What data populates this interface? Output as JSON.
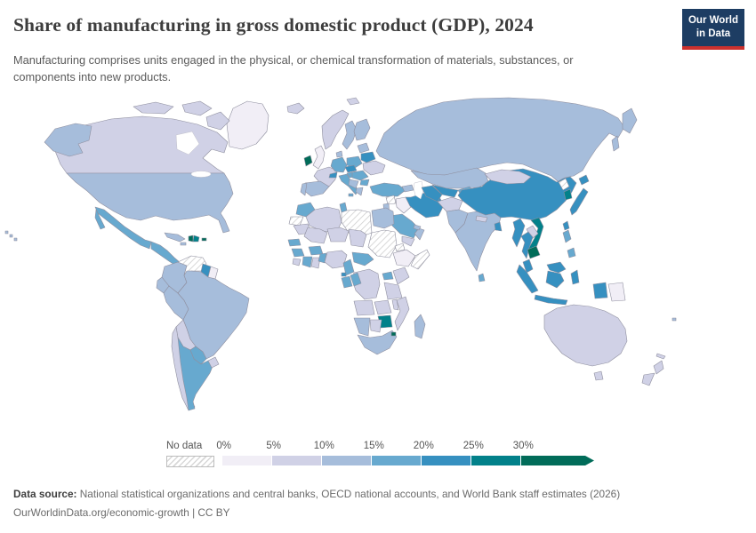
{
  "header": {
    "title": "Share of manufacturing in gross domestic product (GDP), 2024",
    "subtitle_line1": "Manufacturing comprises units engaged in the physical, or chemical transformation of materials, substances, or",
    "subtitle_line2": "components into new products.",
    "logo_line1": "Our World",
    "logo_line2": "in Data",
    "logo_bg_color": "#1d3d63",
    "logo_accent_color": "#cc312e"
  },
  "legend": {
    "no_data_label": "No data",
    "tick_labels": [
      "0%",
      "5%",
      "10%",
      "15%",
      "20%",
      "25%",
      "30%"
    ]
  },
  "footer": {
    "source_label": "Data source:",
    "source_text": " National statistical organizations and central banks, OECD national accounts, and World Bank staff estimates (2026)",
    "url_text": "OurWorldinData.org/economic-growth",
    "license_suffix": " | CC BY"
  },
  "chart_data": {
    "type": "choropleth",
    "title": "Share of manufacturing in gross domestic product (GDP), 2024",
    "year": "2024",
    "unit": "share of GDP (%)",
    "legend_position": "bottom",
    "bins": [
      "0-5%",
      "5-10%",
      "10-15%",
      "15-20%",
      "20-25%",
      "25-30%",
      "30%+",
      "no-data"
    ],
    "bin_colors": {
      "0-5%": "#f1eef6",
      "5-10%": "#d0d1e6",
      "10-15%": "#a6bddb",
      "15-20%": "#67a9cf",
      "20-25%": "#3690c0",
      "25-30%": "#02818a",
      "30%+": "#016c59",
      "no-data": "hatched"
    },
    "country_bins": {
      "greenland": "0-5%",
      "canada": "5-10%",
      "usa": "10-15%",
      "hawaii": "10-15%",
      "mexico": "15-20%",
      "central-america": "15-20%",
      "cuba": "10-15%",
      "jamaica": "10-15%",
      "haiti": "30%+",
      "dominican-republic": "25-30%",
      "puerto-rico": "30%+",
      "colombia": "10-15%",
      "venezuela": "no-data",
      "guyana": "20-25%",
      "suriname": "0-5%",
      "ecuador": "10-15%",
      "peru": "10-15%",
      "brazil": "10-15%",
      "bolivia": "5-10%",
      "paraguay": "15-20%",
      "chile": "5-10%",
      "argentina": "15-20%",
      "uruguay": "5-10%",
      "iceland": "5-10%",
      "svalbard": "5-10%",
      "norway": "5-10%",
      "sweden": "10-15%",
      "finland": "10-15%",
      "denmark": "10-15%",
      "united-kingdom": "0-5%",
      "ireland": "30%+",
      "france": "5-10%",
      "spain": "10-15%",
      "portugal": "10-15%",
      "germany": "15-20%",
      "switzerland": "20-25%",
      "czechia": "20-25%",
      "austria": "15-20%",
      "italy": "15-20%",
      "poland": "15-20%",
      "baltics": "10-15%",
      "belarus": "20-25%",
      "ukraine": "5-10%",
      "romania": "15-20%",
      "balkans": "10-15%",
      "bulgaria": "15-20%",
      "greece": "10-15%",
      "russia": "10-15%",
      "turkey": "15-20%",
      "caucasus": "10-15%",
      "syria": "no-data",
      "iraq": "0-5%",
      "israel-jordan": "10-15%",
      "saudi-arabia": "15-20%",
      "yemen": "5-10%",
      "oman": "10-15%",
      "uae": "10-15%",
      "iran": "20-25%",
      "kazakhstan": "10-15%",
      "uzbekistan": "20-25%",
      "turkmenistan": "20-25%",
      "kyrgyzstan-tajikistan": "15-20%",
      "afghanistan": "5-10%",
      "pakistan": "10-15%",
      "india": "10-15%",
      "nepal": "5-10%",
      "bangladesh": "20-25%",
      "sri-lanka": "15-20%",
      "china": "20-25%",
      "mongolia": "5-10%",
      "north-korea": "no-data",
      "south-korea": "25-30%",
      "japan": "20-25%",
      "taiwan": "20-25%",
      "myanmar": "20-25%",
      "thailand": "20-25%",
      "laos": "5-10%",
      "vietnam": "25-30%",
      "cambodia": "30%+",
      "malaysia": "20-25%",
      "philippines": "15-20%",
      "indonesia": "20-25%",
      "papua-new-guinea": "0-5%",
      "australia": "5-10%",
      "new-zealand": "5-10%",
      "fiji": "10-15%",
      "new-caledonia": "5-10%",
      "morocco": "15-20%",
      "western-sahara": "no-data",
      "algeria": "5-10%",
      "tunisia": "15-20%",
      "libya": "no-data",
      "egypt": "10-15%",
      "mauritania": "5-10%",
      "mali": "5-10%",
      "niger": "5-10%",
      "chad": "5-10%",
      "sudan": "no-data",
      "eritrea": "no-data",
      "ethiopia": "0-5%",
      "somalia": "no-data",
      "senegal": "15-20%",
      "guinea": "15-20%",
      "sierra-leone": "5-10%",
      "cote-divoire": "15-20%",
      "ghana": "5-10%",
      "burkina-faso": "15-20%",
      "benin-togo": "15-20%",
      "nigeria": "5-10%",
      "cameroon": "15-20%",
      "central-african-republic": "15-20%",
      "equatorial-guinea": "20-25%",
      "gabon": "15-20%",
      "congo": "15-20%",
      "drc": "5-10%",
      "uganda": "15-20%",
      "kenya": "5-10%",
      "tanzania": "5-10%",
      "angola": "5-10%",
      "zambia": "5-10%",
      "malawi": "5-10%",
      "mozambique": "5-10%",
      "zimbabwe": "25-30%",
      "namibia": "10-15%",
      "botswana": "5-10%",
      "south-africa": "10-15%",
      "eswatini": "30%+",
      "madagascar": "10-15%"
    }
  }
}
